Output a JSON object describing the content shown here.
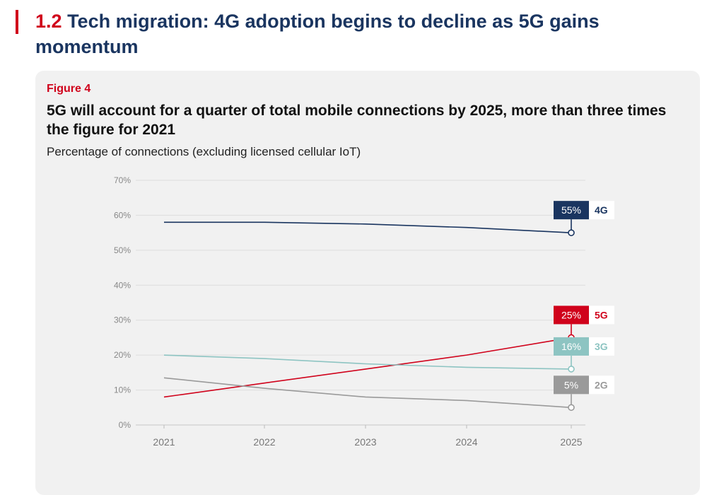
{
  "section": {
    "number": "1.2",
    "title": "Tech migration: 4G adoption begins to decline as 5G gains momentum"
  },
  "figure": {
    "label": "Figure 4",
    "title": "5G will account for a quarter of total mobile connections by 2025, more than three times the figure for 2021",
    "subtitle": "Percentage of connections (excluding licensed cellular IoT)"
  },
  "chart_data": {
    "type": "line",
    "x": [
      "2021",
      "2022",
      "2023",
      "2024",
      "2025"
    ],
    "ylim": [
      0,
      70
    ],
    "yticks": [
      0,
      10,
      20,
      30,
      40,
      50,
      60,
      70
    ],
    "ytick_labels": [
      "0%",
      "10%",
      "20%",
      "30%",
      "40%",
      "50%",
      "60%",
      "70%"
    ],
    "grid": true,
    "series": [
      {
        "name": "4G",
        "color": "#1a3560",
        "values": [
          58,
          58,
          57.5,
          56.5,
          55
        ],
        "end_label": "55%"
      },
      {
        "name": "5G",
        "color": "#d0021b",
        "values": [
          8,
          12,
          16,
          20,
          25
        ],
        "end_label": "25%"
      },
      {
        "name": "3G",
        "color": "#8dc4c2",
        "values": [
          20,
          19,
          17.5,
          16.5,
          16
        ],
        "end_label": "16%"
      },
      {
        "name": "2G",
        "color": "#9a9a9a",
        "values": [
          13.5,
          10.5,
          8,
          7,
          5
        ],
        "end_label": "5%"
      }
    ]
  }
}
